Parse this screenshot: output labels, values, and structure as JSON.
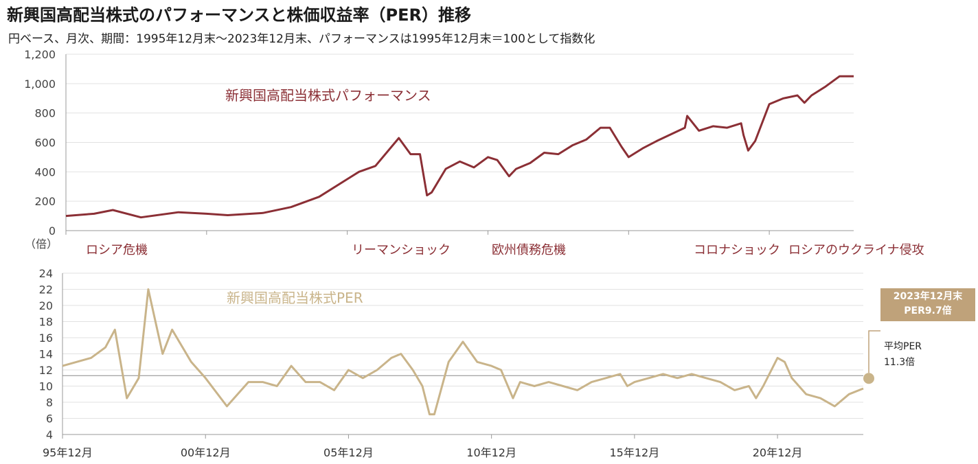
{
  "header": {
    "title": "新興国高配当株式のパフォーマンスと株価収益率（PER）推移",
    "subtitle": "円ベース、月次、期間：1995年12月末～2023年12月末、パフォーマンスは1995年12月末＝100として指数化"
  },
  "colors": {
    "performance": "#8b2f35",
    "per": "#c9b48a",
    "per_badge": "#bfa27a",
    "grid": "#e2e2e2",
    "avg_line": "#888888"
  },
  "performance_chart": {
    "label": "新興国高配当株式パフォーマンス",
    "y_ticks": [
      "1,200",
      "1,000",
      "800",
      "600",
      "400",
      "200",
      "0"
    ],
    "events": [
      {
        "id": "russia-crisis",
        "label": "ロシア危機",
        "date": "1998-08"
      },
      {
        "id": "lehman",
        "label": "リーマンショック",
        "date": "2008-09"
      },
      {
        "id": "euro-debt",
        "label": "欧州債務危機",
        "date": "2011-08"
      },
      {
        "id": "corona",
        "label": "コロナショック",
        "date": "2020-03"
      },
      {
        "id": "ukraine",
        "label": "ロシアのウクライナ侵攻",
        "date": "2022-02"
      }
    ]
  },
  "per_chart": {
    "label": "新興国高配当株式PER",
    "y_unit": "（倍）",
    "y_ticks": [
      "24",
      "22",
      "20",
      "18",
      "16",
      "14",
      "12",
      "10",
      "8",
      "6",
      "4"
    ],
    "x_ticks": [
      "95年12月",
      "00年12月",
      "05年12月",
      "10年12月",
      "15年12月",
      "20年12月"
    ],
    "latest_badge_line1": "2023年12月末",
    "latest_badge_line2": "PER9.7倍",
    "average_line1": "平均PER",
    "average_line2": "11.3倍"
  },
  "chart_data": [
    {
      "type": "line",
      "title": "",
      "xlabel": "",
      "ylabel": "",
      "ylim": [
        0,
        1200
      ],
      "x": [
        "1995-12",
        "1996-12",
        "1997-08",
        "1998-08",
        "1999-12",
        "2000-12",
        "2001-09",
        "2002-12",
        "2003-12",
        "2004-12",
        "2005-12",
        "2006-05",
        "2006-12",
        "2007-10",
        "2008-03",
        "2008-07",
        "2008-10",
        "2008-12",
        "2009-06",
        "2009-12",
        "2010-06",
        "2010-12",
        "2011-04",
        "2011-09",
        "2011-12",
        "2012-06",
        "2012-12",
        "2013-06",
        "2013-12",
        "2014-06",
        "2014-12",
        "2015-04",
        "2015-09",
        "2015-12",
        "2016-06",
        "2016-12",
        "2017-12",
        "2018-01",
        "2018-06",
        "2018-12",
        "2019-06",
        "2019-12",
        "2020-01",
        "2020-03",
        "2020-06",
        "2020-12",
        "2021-06",
        "2021-12",
        "2022-03",
        "2022-06",
        "2022-12",
        "2023-06",
        "2023-12"
      ],
      "series": [
        {
          "name": "新興国高配当株式パフォーマンス",
          "values": [
            100,
            115,
            140,
            90,
            125,
            115,
            105,
            120,
            160,
            230,
            350,
            400,
            440,
            630,
            520,
            520,
            240,
            260,
            420,
            470,
            430,
            500,
            480,
            370,
            420,
            460,
            530,
            520,
            580,
            620,
            700,
            700,
            570,
            500,
            560,
            610,
            700,
            780,
            680,
            710,
            700,
            730,
            650,
            545,
            610,
            860,
            900,
            920,
            870,
            920,
            980,
            1050,
            1050
          ]
        }
      ]
    },
    {
      "type": "line",
      "title": "",
      "xlabel": "",
      "ylabel": "（倍）",
      "ylim": [
        4,
        24
      ],
      "x": [
        "1995-12",
        "1996-12",
        "1997-06",
        "1997-10",
        "1998-03",
        "1998-08",
        "1998-12",
        "1999-06",
        "1999-10",
        "2000-06",
        "2000-12",
        "2001-09",
        "2002-06",
        "2002-12",
        "2003-06",
        "2003-12",
        "2004-06",
        "2004-12",
        "2005-06",
        "2005-12",
        "2006-06",
        "2006-12",
        "2007-06",
        "2007-10",
        "2008-03",
        "2008-07",
        "2008-10",
        "2008-12",
        "2009-06",
        "2009-12",
        "2010-06",
        "2010-12",
        "2011-04",
        "2011-09",
        "2011-12",
        "2012-06",
        "2012-12",
        "2013-06",
        "2013-12",
        "2014-06",
        "2014-12",
        "2015-06",
        "2015-09",
        "2015-12",
        "2016-06",
        "2016-12",
        "2017-06",
        "2017-12",
        "2018-06",
        "2018-12",
        "2019-06",
        "2019-12",
        "2020-03",
        "2020-06",
        "2020-12",
        "2021-03",
        "2021-06",
        "2021-12",
        "2022-06",
        "2022-12",
        "2023-06",
        "2023-12"
      ],
      "series": [
        {
          "name": "新興国高配当株式PER",
          "values": [
            12.5,
            13.5,
            14.8,
            17.0,
            8.5,
            11.0,
            22.0,
            14.0,
            17.0,
            13.0,
            11.0,
            7.5,
            10.5,
            10.5,
            10.0,
            12.5,
            10.5,
            10.5,
            9.5,
            12.0,
            11.0,
            12.0,
            13.5,
            14.0,
            12.0,
            10.0,
            6.5,
            6.5,
            13.0,
            15.5,
            13.0,
            12.5,
            12.0,
            8.5,
            10.5,
            10.0,
            10.5,
            10.0,
            9.5,
            10.5,
            11.0,
            11.5,
            10.0,
            10.5,
            11.0,
            11.5,
            11.0,
            11.5,
            11.0,
            10.5,
            9.5,
            10.0,
            8.5,
            10.0,
            13.5,
            13.0,
            11.0,
            9.0,
            8.5,
            7.5,
            9.0,
            9.7
          ]
        }
      ]
    }
  ]
}
